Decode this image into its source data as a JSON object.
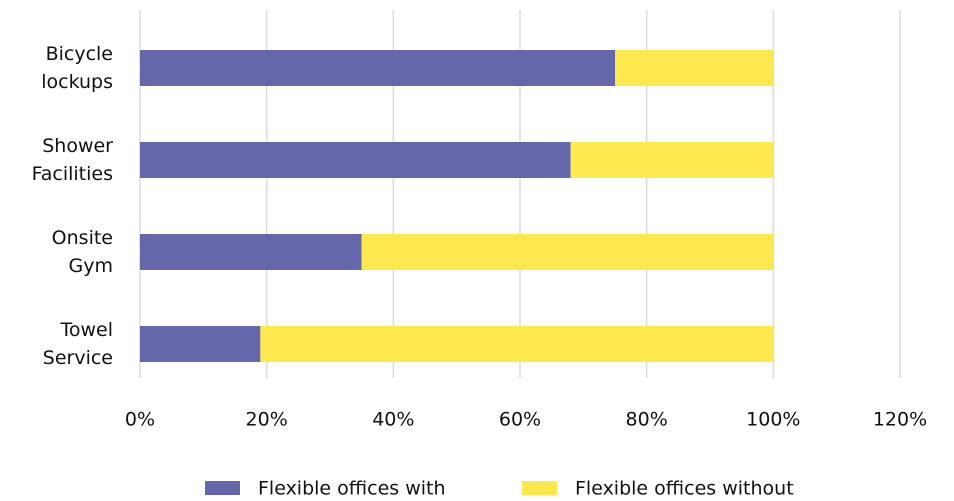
{
  "chart_data": {
    "type": "stacked_barh",
    "categories": [
      [
        "Bicycle",
        "lockups"
      ],
      [
        "Shower",
        "Facilities"
      ],
      [
        "Onsite",
        "Gym"
      ],
      [
        "Towel",
        "Service"
      ]
    ],
    "series": [
      {
        "name": "Flexible offices with",
        "color": "#6666aa",
        "values": [
          75,
          68,
          35,
          19
        ]
      },
      {
        "name": "Flexible offices without",
        "color": "#fde84f",
        "values": [
          25,
          32,
          65,
          81
        ]
      }
    ],
    "xlim": [
      0,
      120
    ],
    "xticks": [
      {
        "value": 0,
        "label": "0%"
      },
      {
        "value": 20,
        "label": "20%"
      },
      {
        "value": 40,
        "label": "40%"
      },
      {
        "value": 60,
        "label": "60%"
      },
      {
        "value": 80,
        "label": "80%"
      },
      {
        "value": 100,
        "label": "100%"
      },
      {
        "value": 120,
        "label": "120%"
      }
    ],
    "grid": true,
    "legend": "bottom"
  }
}
